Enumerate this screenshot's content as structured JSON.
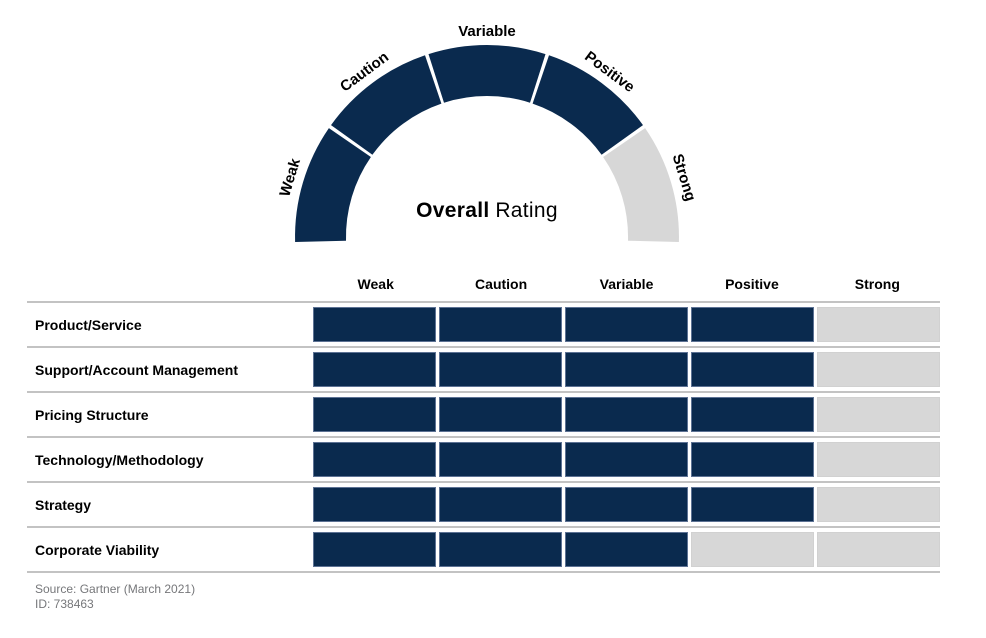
{
  "gauge": {
    "title_bold": "Overall",
    "title_rest": "Rating",
    "segments": [
      {
        "label": "Weak",
        "filled": true
      },
      {
        "label": "Caution",
        "filled": true
      },
      {
        "label": "Variable",
        "filled": true
      },
      {
        "label": "Positive",
        "filled": true
      },
      {
        "label": "Strong",
        "filled": false
      }
    ]
  },
  "table": {
    "columns": [
      "Weak",
      "Caution",
      "Variable",
      "Positive",
      "Strong"
    ],
    "rows": [
      {
        "label": "Product/Service",
        "rating": 4
      },
      {
        "label": "Support/Account Management",
        "rating": 4
      },
      {
        "label": "Pricing Structure",
        "rating": 4
      },
      {
        "label": "Technology/Methodology",
        "rating": 4
      },
      {
        "label": "Strategy",
        "rating": 4
      },
      {
        "label": "Corporate Viability",
        "rating": 3
      }
    ]
  },
  "footer": {
    "source": "Source: Gartner (March 2021)",
    "id": "ID: 738463"
  },
  "colors": {
    "filled": "#0a2a4e",
    "filled_border": "#5d7294",
    "empty": "#d7d7d7",
    "divider": "#c3c3c3",
    "text": "#000000",
    "muted": "#76777a"
  },
  "chart_data": {
    "type": "table",
    "title": "Overall Rating",
    "scale": [
      "Weak",
      "Caution",
      "Variable",
      "Positive",
      "Strong"
    ],
    "overall_rating": {
      "value": 4,
      "label": "Positive",
      "filled_segments": [
        "Weak",
        "Caution",
        "Variable",
        "Positive"
      ],
      "empty_segments": [
        "Strong"
      ]
    },
    "rows": [
      {
        "category": "Product/Service",
        "value": 4,
        "rating_label": "Positive"
      },
      {
        "category": "Support/Account Management",
        "value": 4,
        "rating_label": "Positive"
      },
      {
        "category": "Pricing Structure",
        "value": 4,
        "rating_label": "Positive"
      },
      {
        "category": "Technology/Methodology",
        "value": 4,
        "rating_label": "Positive"
      },
      {
        "category": "Strategy",
        "value": 4,
        "rating_label": "Positive"
      },
      {
        "category": "Corporate Viability",
        "value": 3,
        "rating_label": "Variable"
      }
    ],
    "source": "Source: Gartner (March 2021)",
    "figure_id": "ID: 738463",
    "layout": {
      "gauge_position": "top-center",
      "table_columns_follow_scale": true,
      "grid": false,
      "legend": false
    }
  }
}
